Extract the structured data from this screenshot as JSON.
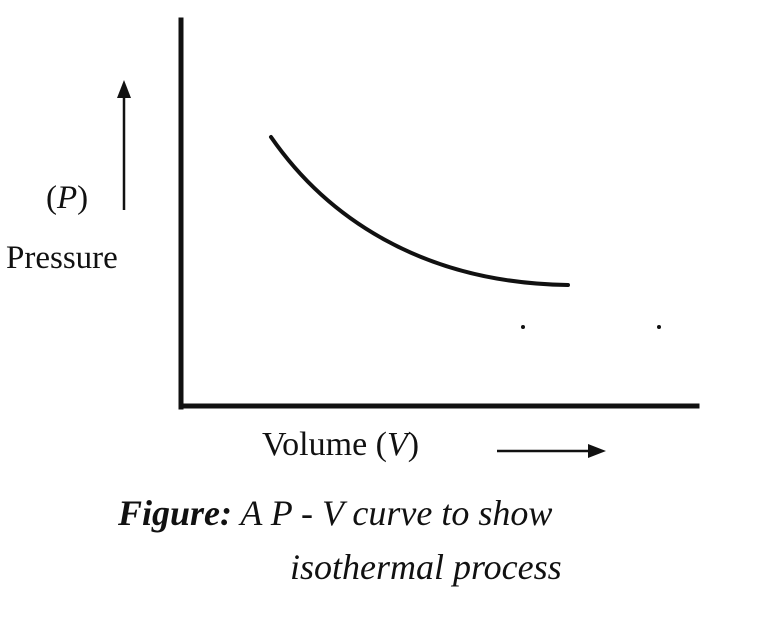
{
  "diagram": {
    "y_axis": {
      "symbol_open": "(",
      "symbol": "P",
      "symbol_close": ")",
      "label": "Pressure",
      "arrow": "up"
    },
    "x_axis": {
      "label": "Volume",
      "symbol_open": "(",
      "symbol": "V",
      "symbol_close": ")",
      "arrow": "right"
    },
    "curve": {
      "shape": "decreasing hyperbola"
    },
    "caption": {
      "prefix": "Figure:",
      "line1": " A P - V curve to show",
      "line2": "isothermal process"
    },
    "colors": {
      "ink": "#111111",
      "background": "#ffffff"
    }
  }
}
